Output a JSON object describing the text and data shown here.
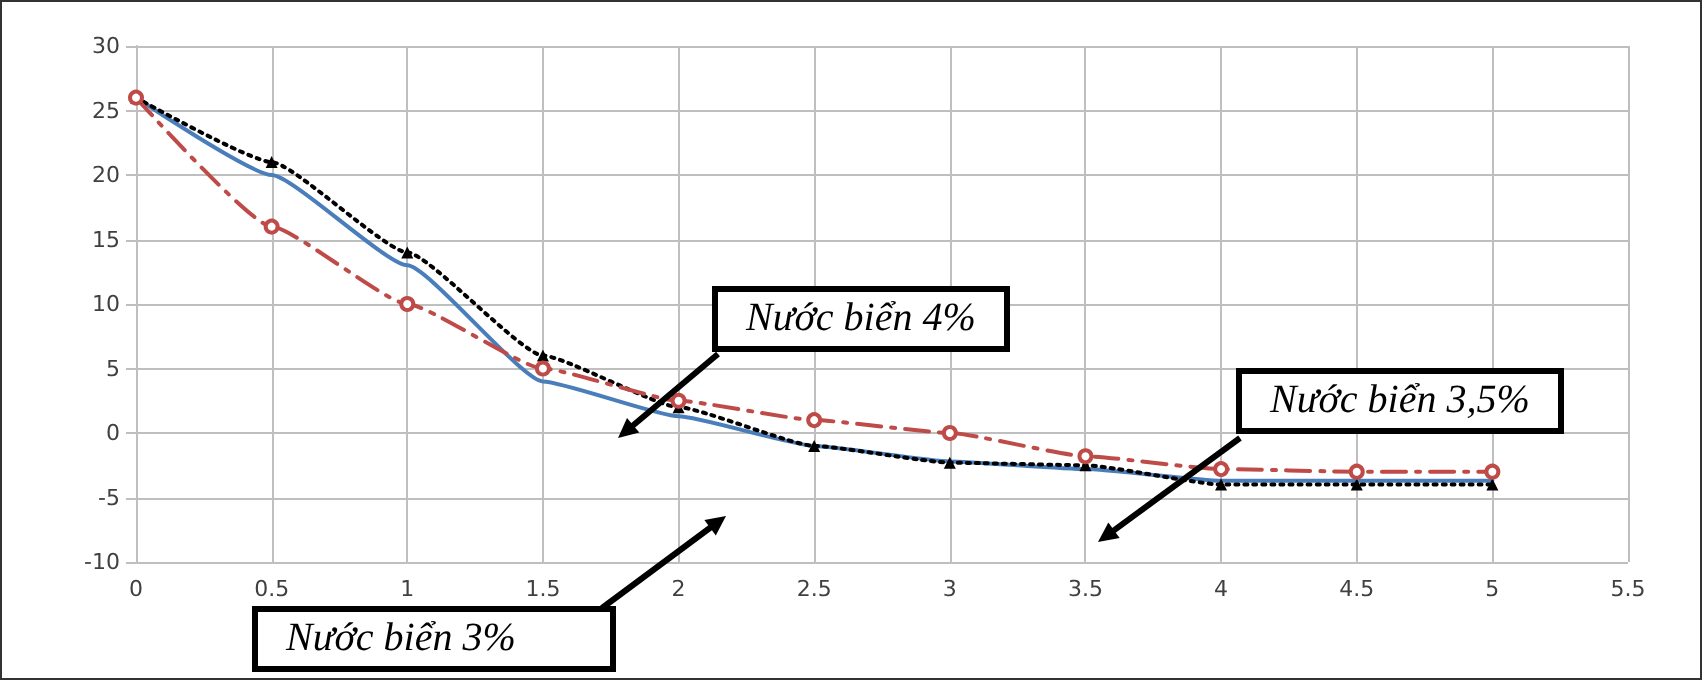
{
  "chart_data": {
    "type": "line",
    "x": [
      0,
      0.5,
      1,
      1.5,
      2,
      2.5,
      3,
      3.5,
      4,
      4.5,
      5
    ],
    "series": [
      {
        "color": "#4a7ebb",
        "marker": "none",
        "line_style": "solid",
        "values": [
          26,
          20,
          13,
          4,
          1.3,
          -1,
          -2.2,
          -2.8,
          -3.7,
          -3.7,
          -3.7
        ]
      },
      {
        "color": "#000000",
        "marker": "triangle",
        "line_style": "dotted",
        "values": [
          26,
          21,
          14,
          6,
          2,
          -1,
          -2.3,
          -2.5,
          -4,
          -4,
          -4
        ]
      },
      {
        "color": "#be4b48",
        "marker": "circle",
        "line_style": "dashdot",
        "values": [
          26,
          16,
          10,
          5,
          2.5,
          1,
          0,
          -1.8,
          -2.8,
          -3,
          -3
        ]
      }
    ],
    "xlim": [
      0,
      5.5
    ],
    "xticks": [
      0,
      0.5,
      1,
      1.5,
      2,
      2.5,
      3,
      3.5,
      4,
      4.5,
      5,
      5.5
    ],
    "ylim": [
      -10,
      30
    ],
    "yticks": [
      -10,
      -5,
      0,
      5,
      10,
      15,
      20,
      25,
      30
    ],
    "grid": true,
    "annotations": [
      "Nước biển 4%",
      "Nước biển 3%",
      "Nước biển 3,5%"
    ]
  }
}
